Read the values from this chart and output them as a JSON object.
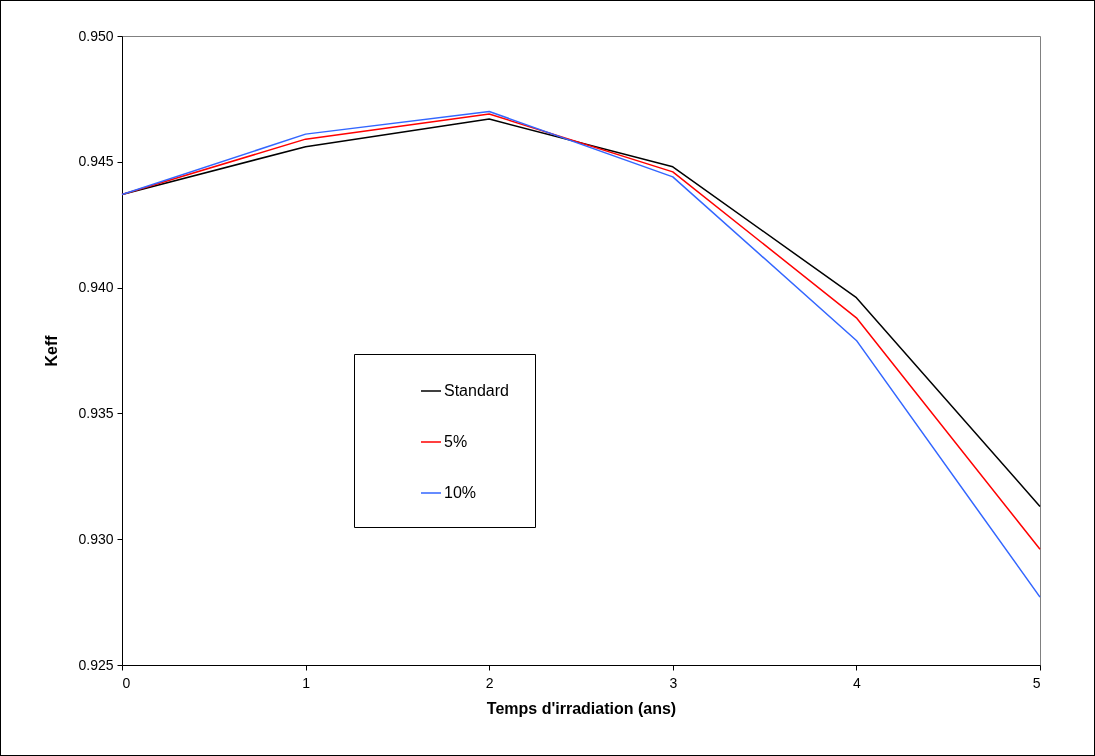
{
  "chart_data": {
    "type": "line",
    "xlabel": "Temps d'irradiation (ans)",
    "ylabel": "Keff",
    "x": [
      0,
      1,
      2,
      3,
      4,
      5
    ],
    "series": [
      {
        "name": "Standard",
        "color": "#000000",
        "values": [
          0.9437,
          0.9456,
          0.9467,
          0.9448,
          0.9396,
          0.9313
        ]
      },
      {
        "name": "5%",
        "color": "#ff0000",
        "values": [
          0.9437,
          0.9459,
          0.9469,
          0.9446,
          0.9388,
          0.9296
        ]
      },
      {
        "name": "10%",
        "color": "#3366ff",
        "values": [
          0.9437,
          0.9461,
          0.947,
          0.9444,
          0.9379,
          0.9277
        ]
      }
    ],
    "xlim": [
      0,
      5
    ],
    "xticks": [
      0,
      1,
      2,
      3,
      4,
      5
    ],
    "ylim": [
      0.925,
      0.95
    ],
    "yticks": [
      {
        "value": 0.925,
        "label": "0.925"
      },
      {
        "value": 0.93,
        "label": "0.930"
      },
      {
        "value": 0.935,
        "label": "0.935"
      },
      {
        "value": 0.94,
        "label": "0.940"
      },
      {
        "value": 0.945,
        "label": "0.945"
      },
      {
        "value": 0.95,
        "label": "0.950"
      }
    ],
    "legend": "center left",
    "grid": false,
    "marker": "none",
    "line_style": "solid"
  }
}
